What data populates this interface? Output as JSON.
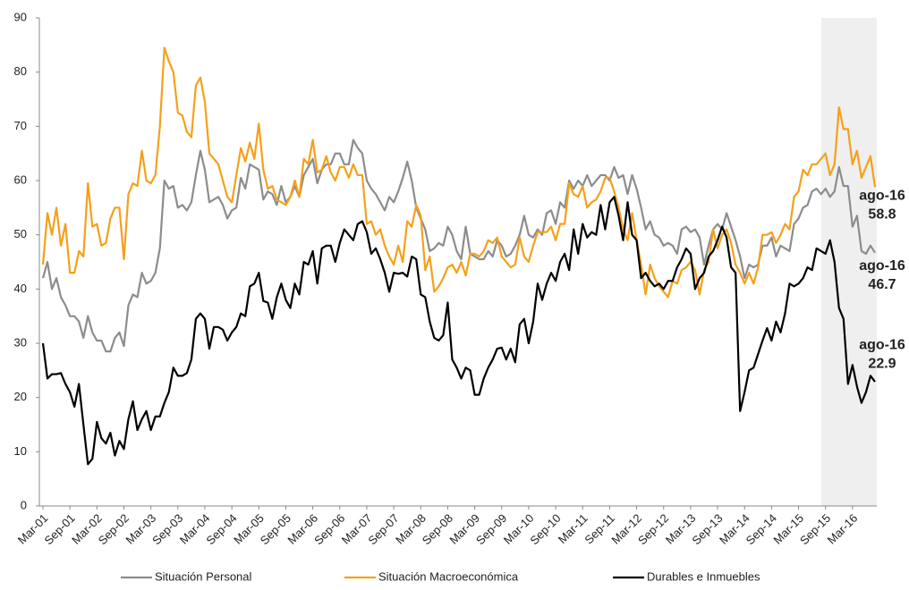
{
  "chart_data": {
    "type": "line",
    "categories": [
      "Mar-01",
      null,
      null,
      null,
      null,
      null,
      "Sep-01",
      null,
      null,
      null,
      null,
      null,
      "Mar-02",
      null,
      null,
      null,
      null,
      null,
      "Sep-02",
      null,
      null,
      null,
      null,
      null,
      "Mar-03",
      null,
      null,
      null,
      null,
      null,
      "Sep-03",
      null,
      null,
      null,
      null,
      null,
      "Mar-04",
      null,
      null,
      null,
      null,
      null,
      "Sep-04",
      null,
      null,
      null,
      null,
      null,
      "Mar-05",
      null,
      null,
      null,
      null,
      null,
      "Sep-05",
      null,
      null,
      null,
      null,
      null,
      "Mar-06",
      null,
      null,
      null,
      null,
      null,
      "Sep-06",
      null,
      null,
      null,
      null,
      null,
      "Mar-07",
      null,
      null,
      null,
      null,
      null,
      "Sep-07",
      null,
      null,
      null,
      null,
      null,
      "Mar-08",
      null,
      null,
      null,
      null,
      null,
      "Sep-08",
      null,
      null,
      null,
      null,
      null,
      "Mar-09",
      null,
      null,
      null,
      null,
      null,
      "Sep-09",
      null,
      null,
      null,
      null,
      null,
      "Mar-10",
      null,
      null,
      null,
      null,
      null,
      "Sep-10",
      null,
      null,
      null,
      null,
      null,
      "Mar-11",
      null,
      null,
      null,
      null,
      null,
      "Sep-11",
      null,
      null,
      null,
      null,
      null,
      "Mar-12",
      null,
      null,
      null,
      null,
      null,
      "Sep-12",
      null,
      null,
      null,
      null,
      null,
      "Mar-13",
      null,
      null,
      null,
      null,
      null,
      "Sep-13",
      null,
      null,
      null,
      null,
      null,
      "Mar-14",
      null,
      null,
      null,
      null,
      null,
      "Sep-14",
      null,
      null,
      null,
      null,
      null,
      "Mar-15",
      null,
      null,
      null,
      null,
      null,
      "Sep-15",
      null,
      null,
      null,
      null,
      null,
      "Mar-16",
      null,
      null,
      null,
      null,
      null
    ],
    "series": [
      {
        "name": "Situación Personal",
        "color": "#8c8c8c",
        "values": [
          42,
          45,
          40,
          42,
          38.5,
          37,
          35,
          35,
          34,
          31,
          35,
          32,
          30.5,
          30.5,
          28.5,
          28.5,
          31,
          32,
          29.5,
          37,
          39,
          38.5,
          43,
          41,
          41.5,
          43,
          47.5,
          60,
          58.5,
          59,
          55,
          55.5,
          54.5,
          56,
          61,
          65.5,
          62,
          56,
          56.5,
          57,
          55.5,
          53,
          54.5,
          55,
          60.5,
          58.5,
          63,
          62.5,
          62,
          56.5,
          58,
          57.5,
          55.5,
          59,
          56,
          57,
          59,
          57,
          61,
          62.5,
          64,
          59.5,
          62,
          63,
          63,
          65,
          65,
          63,
          63,
          67.5,
          66,
          65,
          60,
          58.5,
          57.5,
          56,
          54.5,
          57,
          56,
          58,
          60.5,
          63.5,
          60,
          55,
          53,
          51,
          47,
          47.5,
          48.5,
          48,
          51.5,
          50,
          47,
          45.5,
          51.5,
          46.5,
          46,
          45.5,
          45.5,
          47,
          46,
          49,
          48,
          46,
          46.5,
          48,
          50,
          53.5,
          50,
          49.5,
          51,
          50,
          54,
          54.5,
          52,
          56,
          55,
          60,
          58.5,
          60,
          59,
          61,
          59,
          60,
          61,
          61,
          60,
          62.5,
          60.5,
          61,
          57.5,
          61,
          58.5,
          55,
          51,
          52.5,
          50,
          49.5,
          48,
          48.5,
          48,
          46.5,
          51,
          51.5,
          50.5,
          51,
          49.5,
          44.5,
          48,
          51,
          52,
          51,
          54,
          51.5,
          49,
          46,
          42,
          44.5,
          44,
          44.5,
          48,
          48,
          49.5,
          46,
          48,
          47.5,
          47,
          52,
          53,
          55,
          55.5,
          58,
          58.5,
          57.5,
          58.5,
          57,
          58,
          62.5,
          59,
          59,
          51.5,
          53.5,
          47,
          46.5,
          48,
          46.7
        ]
      },
      {
        "name": "Situación Macroeconómica",
        "color": "#f5a01a",
        "values": [
          44.5,
          54,
          50,
          55,
          48,
          52,
          43,
          43,
          47,
          46,
          59.5,
          51.5,
          52,
          48,
          48.5,
          53,
          55,
          55,
          45.5,
          57.5,
          59.5,
          59,
          65.5,
          60,
          59.5,
          61,
          70,
          84.5,
          82,
          80,
          72.5,
          72,
          69,
          68,
          77.5,
          79,
          74.5,
          65,
          64,
          63,
          60,
          57,
          56,
          61,
          66,
          63.5,
          67,
          64,
          70.5,
          62,
          58.5,
          59,
          56.5,
          56,
          55.5,
          57,
          60,
          57,
          64,
          63,
          67.5,
          61.5,
          62,
          64.5,
          61.5,
          60,
          62.5,
          62.5,
          60.5,
          63,
          61,
          61,
          52,
          52.5,
          50,
          51,
          48,
          46,
          44.5,
          48,
          45,
          52.5,
          51.5,
          55.5,
          53.5,
          43.5,
          46,
          39.5,
          40.5,
          42,
          44,
          44.5,
          43,
          45,
          42.5,
          46.5,
          46.5,
          46,
          47,
          49,
          48.5,
          49.5,
          46,
          45,
          44,
          44.5,
          49.5,
          46,
          45,
          48,
          50.5,
          50.5,
          50.5,
          51.5,
          49,
          52,
          52,
          59.5,
          57.5,
          57,
          59,
          55,
          56,
          56.5,
          58,
          60.5,
          60.5,
          58,
          55,
          51,
          49,
          54,
          49,
          44.5,
          39,
          44.5,
          42,
          40.5,
          39.5,
          38.5,
          41.5,
          41,
          43.5,
          44,
          45,
          43.5,
          39,
          43.5,
          45,
          51,
          47.5,
          50,
          51,
          48.5,
          44.5,
          43,
          41,
          43,
          41,
          44,
          50,
          50,
          50.5,
          48.5,
          50,
          52,
          51,
          57,
          58,
          62,
          61,
          63,
          63,
          64,
          65,
          61,
          63,
          73.5,
          69.5,
          69.5,
          63,
          65.5,
          60.5,
          62.5,
          64.5,
          58.8
        ]
      },
      {
        "name": "Durables e Inmuebles",
        "color": "#000000",
        "values": [
          30,
          23.5,
          24.3,
          24.3,
          24.5,
          22.5,
          21,
          18.3,
          22.5,
          15,
          7.7,
          8.7,
          15.5,
          12.5,
          11.5,
          13.5,
          9.3,
          12,
          10.5,
          16,
          19.3,
          14,
          16,
          17.5,
          14,
          16.5,
          16.5,
          19,
          21,
          25.5,
          24,
          24,
          24.5,
          27,
          34.5,
          35.5,
          34.5,
          29,
          33,
          33,
          32.5,
          30.5,
          32,
          33,
          35.5,
          35,
          40.5,
          41,
          43,
          37.8,
          37.5,
          34.5,
          38.5,
          41,
          38,
          36.5,
          41,
          39,
          45,
          44.5,
          47,
          41,
          47.5,
          48,
          48,
          45,
          48.5,
          51,
          50,
          49,
          52,
          52.5,
          50.5,
          46.5,
          47.5,
          45.5,
          43,
          39.5,
          43,
          42.8,
          43,
          42.3,
          46,
          45.5,
          39,
          38.5,
          34,
          31,
          30.5,
          31.5,
          37.5,
          27,
          25.5,
          23.5,
          25.5,
          25,
          20.5,
          20.5,
          23.5,
          25.5,
          27,
          29,
          29.2,
          27,
          29,
          26.5,
          33.5,
          34.5,
          30,
          34,
          41,
          38,
          41,
          43,
          41.5,
          45,
          46.5,
          43.5,
          51,
          46.5,
          52,
          49.5,
          50.5,
          50,
          55.5,
          51,
          56,
          57,
          53.5,
          49,
          56,
          50,
          49,
          42,
          43,
          41.5,
          40.5,
          41,
          40,
          41.5,
          41.5,
          44,
          45.5,
          47.5,
          46.5,
          40,
          42,
          43,
          46,
          47,
          49,
          51.5,
          49.5,
          44,
          43,
          17.5,
          21,
          25,
          25.5,
          28,
          30.5,
          32.8,
          30.5,
          34,
          32,
          35.5,
          41,
          40.5,
          41,
          42,
          44,
          43.5,
          47.5,
          47,
          46.5,
          49,
          45,
          36.5,
          34.5,
          22.5,
          26,
          22,
          19,
          21,
          24,
          22.9
        ]
      }
    ],
    "annotations": [
      {
        "text": "ago-16",
        "value": 58.8
      },
      {
        "text": "ago-16",
        "value": 46.7
      },
      {
        "text": "ago-16",
        "value": 22.9
      }
    ],
    "ylim": [
      0,
      90
    ],
    "yticks": [
      0,
      10,
      20,
      30,
      40,
      50,
      60,
      70,
      80,
      90
    ],
    "grid": false
  }
}
